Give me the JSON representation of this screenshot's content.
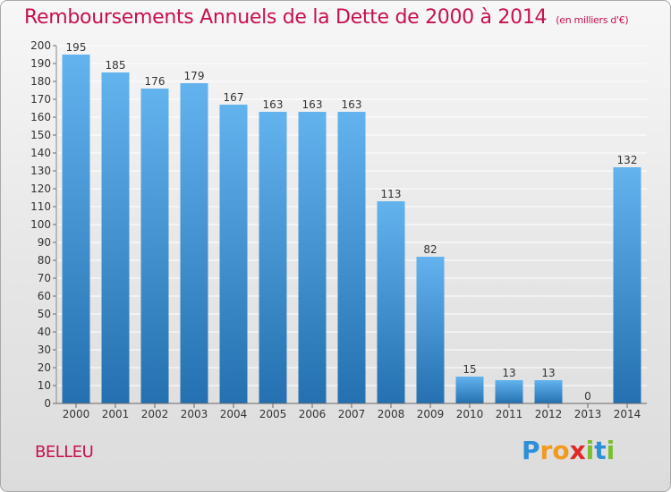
{
  "title": "Remboursements Annuels de la Dette de 2000 à 2014",
  "unit": "(en milliers d'€)",
  "place": "BELLEU",
  "logo": {
    "text": "Proxiti",
    "letters": [
      {
        "ch": "P",
        "color": "#2e8fd9"
      },
      {
        "ch": "r",
        "color": "#f29a1e"
      },
      {
        "ch": "o",
        "color": "#f29a1e"
      },
      {
        "ch": "x",
        "color": "#e02828"
      },
      {
        "ch": "i",
        "color": "#7cbf2e"
      },
      {
        "ch": "t",
        "color": "#2e8fd9"
      },
      {
        "ch": "i",
        "color": "#7cbf2e"
      }
    ]
  },
  "colors": {
    "title": "#c8104e",
    "bar_top": "#63b3ef",
    "bar_bottom": "#2470b0",
    "grid": "#ffffff",
    "axis_text": "#333333"
  },
  "chart_data": {
    "type": "bar",
    "categories": [
      "2000",
      "2001",
      "2002",
      "2003",
      "2004",
      "2005",
      "2006",
      "2007",
      "2008",
      "2009",
      "2010",
      "2011",
      "2012",
      "2013",
      "2014"
    ],
    "values": [
      195,
      185,
      176,
      179,
      167,
      163,
      163,
      163,
      113,
      82,
      15,
      13,
      13,
      0,
      132
    ],
    "title": "Remboursements Annuels de la Dette de 2000 à 2014",
    "subtitle": "(en milliers d'€)",
    "xlabel": "",
    "ylabel": "",
    "ylim": [
      0,
      200
    ],
    "ytick_step": 10,
    "grid": true,
    "data_labels": true,
    "legend": "none"
  }
}
